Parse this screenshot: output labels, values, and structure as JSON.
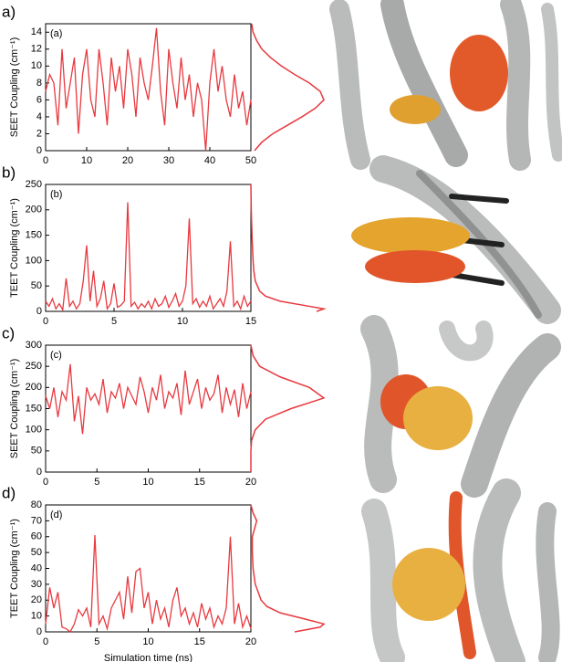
{
  "chart_data": [
    {
      "type": "line",
      "figure_label": "a)",
      "panel_label": "(a)",
      "ylabel": "SEET Coupling (cm⁻¹)",
      "color": "#e8393f",
      "xlim": [
        0,
        50
      ],
      "xticks": [
        0,
        10,
        20,
        30,
        40,
        50
      ],
      "ylim": [
        0,
        15
      ],
      "yticks": [
        0,
        2,
        4,
        6,
        8,
        10,
        12,
        14
      ],
      "x": [
        0,
        1,
        2,
        3,
        4,
        5,
        6,
        7,
        8,
        9,
        10,
        11,
        12,
        13,
        14,
        15,
        16,
        17,
        18,
        19,
        20,
        21,
        22,
        23,
        24,
        25,
        26,
        27,
        28,
        29,
        30,
        31,
        32,
        33,
        34,
        35,
        36,
        37,
        38,
        39,
        40,
        41,
        42,
        43,
        44,
        45,
        46,
        47,
        48,
        49,
        50
      ],
      "values": [
        7,
        9,
        8,
        3,
        12,
        5,
        8,
        11,
        2,
        9,
        12,
        6,
        4,
        12,
        8,
        3,
        11,
        7,
        10,
        5,
        12,
        9,
        4,
        11,
        8,
        6,
        10,
        14.5,
        7,
        3,
        12,
        8,
        5,
        11,
        6,
        9,
        4,
        8,
        6,
        0,
        8,
        12,
        7,
        10,
        6,
        4,
        9,
        5,
        7,
        3,
        6
      ],
      "marginal": {
        "y": [
          0,
          1,
          2,
          3,
          4,
          5,
          6,
          7,
          8,
          9,
          10,
          11,
          12,
          13,
          14,
          15
        ],
        "values": [
          0.05,
          0.15,
          0.3,
          0.5,
          0.7,
          0.88,
          1.0,
          0.95,
          0.8,
          0.6,
          0.42,
          0.27,
          0.15,
          0.08,
          0.03,
          0.01
        ]
      }
    },
    {
      "type": "line",
      "figure_label": "b)",
      "panel_label": "(b)",
      "ylabel": "TEET Coupling (cm⁻¹)",
      "color": "#e8393f",
      "xlim": [
        0,
        15
      ],
      "xticks": [
        0,
        5,
        10,
        15
      ],
      "ylim": [
        0,
        250
      ],
      "yticks": [
        0,
        50,
        100,
        150,
        200,
        250
      ],
      "x": [
        0,
        0.25,
        0.5,
        0.75,
        1,
        1.25,
        1.5,
        1.75,
        2,
        2.25,
        2.5,
        2.75,
        3,
        3.25,
        3.5,
        3.75,
        4,
        4.25,
        4.5,
        4.75,
        5,
        5.25,
        5.5,
        5.75,
        6,
        6.25,
        6.5,
        6.75,
        7,
        7.25,
        7.5,
        7.75,
        8,
        8.25,
        8.5,
        8.75,
        9,
        9.25,
        9.5,
        9.75,
        10,
        10.25,
        10.5,
        10.75,
        11,
        11.25,
        11.5,
        11.75,
        12,
        12.25,
        12.5,
        12.75,
        13,
        13.25,
        13.5,
        13.75,
        14,
        14.25,
        14.5,
        14.75,
        15
      ],
      "values": [
        20,
        10,
        25,
        5,
        15,
        3,
        65,
        10,
        20,
        5,
        15,
        60,
        130,
        20,
        80,
        10,
        25,
        60,
        5,
        15,
        55,
        8,
        12,
        20,
        215,
        10,
        18,
        5,
        15,
        8,
        20,
        5,
        25,
        10,
        15,
        30,
        8,
        20,
        35,
        10,
        20,
        50,
        183,
        15,
        25,
        8,
        20,
        10,
        30,
        5,
        15,
        25,
        10,
        40,
        138,
        10,
        20,
        5,
        30,
        10,
        20
      ],
      "marginal": {
        "y": [
          0,
          5,
          10,
          20,
          30,
          40,
          60,
          80,
          100,
          150,
          200,
          250
        ],
        "values": [
          0.9,
          1.0,
          0.8,
          0.4,
          0.2,
          0.12,
          0.06,
          0.04,
          0.03,
          0.015,
          0.005,
          0
        ]
      }
    },
    {
      "type": "line",
      "figure_label": "c)",
      "panel_label": "(c)",
      "ylabel": "SEET Coupling (cm⁻¹)",
      "color": "#e8393f",
      "xlim": [
        0,
        20
      ],
      "xticks": [
        0,
        5,
        10,
        15,
        20
      ],
      "ylim": [
        0,
        300
      ],
      "yticks": [
        0,
        50,
        100,
        150,
        200,
        250,
        300
      ],
      "x": [
        0,
        0.4,
        0.8,
        1.2,
        1.6,
        2,
        2.4,
        2.8,
        3.2,
        3.6,
        4,
        4.4,
        4.8,
        5.2,
        5.6,
        6,
        6.4,
        6.8,
        7.2,
        7.6,
        8,
        8.4,
        8.8,
        9.2,
        9.6,
        10,
        10.4,
        10.8,
        11.2,
        11.6,
        12,
        12.4,
        12.8,
        13.2,
        13.6,
        14,
        14.4,
        14.8,
        15.2,
        15.6,
        16,
        16.4,
        16.8,
        17.2,
        17.6,
        18,
        18.4,
        18.8,
        19.2,
        19.6,
        20
      ],
      "values": [
        180,
        150,
        200,
        130,
        190,
        170,
        255,
        120,
        180,
        90,
        200,
        170,
        185,
        160,
        220,
        140,
        190,
        175,
        210,
        150,
        200,
        180,
        160,
        225,
        190,
        140,
        200,
        170,
        230,
        150,
        190,
        175,
        210,
        135,
        240,
        160,
        190,
        220,
        150,
        200,
        170,
        185,
        230,
        140,
        200,
        160,
        195,
        130,
        210,
        150,
        190
      ],
      "marginal": {
        "y": [
          0,
          50,
          75,
          100,
          125,
          150,
          175,
          200,
          225,
          250,
          275,
          300
        ],
        "values": [
          0,
          0,
          0.01,
          0.06,
          0.2,
          0.55,
          1.0,
          0.8,
          0.4,
          0.12,
          0.03,
          0
        ]
      }
    },
    {
      "type": "line",
      "figure_label": "d)",
      "panel_label": "(d)",
      "ylabel": "TEET Coupling (cm⁻¹)",
      "xlabel": "Simulation time (ns)",
      "color": "#e8393f",
      "xlim": [
        0,
        20
      ],
      "xticks": [
        0,
        5,
        10,
        15,
        20
      ],
      "ylim": [
        0,
        80
      ],
      "yticks": [
        0,
        10,
        20,
        30,
        40,
        50,
        60,
        70,
        80
      ],
      "x": [
        0,
        0.4,
        0.8,
        1.2,
        1.6,
        2,
        2.4,
        2.8,
        3.2,
        3.6,
        4,
        4.4,
        4.8,
        5.2,
        5.6,
        6,
        6.4,
        6.8,
        7.2,
        7.6,
        8,
        8.4,
        8.8,
        9.2,
        9.6,
        10,
        10.4,
        10.8,
        11.2,
        11.6,
        12,
        12.4,
        12.8,
        13.2,
        13.6,
        14,
        14.4,
        14.8,
        15.2,
        15.6,
        16,
        16.4,
        16.8,
        17.2,
        17.6,
        18,
        18.4,
        18.8,
        19.2,
        19.6,
        20
      ],
      "values": [
        5,
        28,
        15,
        25,
        3,
        2,
        0,
        5,
        14,
        10,
        15,
        3,
        61,
        5,
        10,
        2,
        15,
        20,
        25,
        8,
        35,
        12,
        38,
        40,
        15,
        25,
        5,
        20,
        8,
        15,
        3,
        20,
        28,
        10,
        15,
        5,
        12,
        3,
        18,
        8,
        15,
        3,
        10,
        5,
        15,
        60,
        5,
        18,
        3,
        10,
        2
      ],
      "marginal": {
        "y": [
          0,
          3,
          5,
          8,
          12,
          16,
          20,
          30,
          40,
          50,
          60,
          70,
          75,
          80
        ],
        "values": [
          0.6,
          0.95,
          1.0,
          0.75,
          0.4,
          0.22,
          0.14,
          0.06,
          0.03,
          0.02,
          0.02,
          0.08,
          0.03,
          0
        ]
      }
    }
  ]
}
